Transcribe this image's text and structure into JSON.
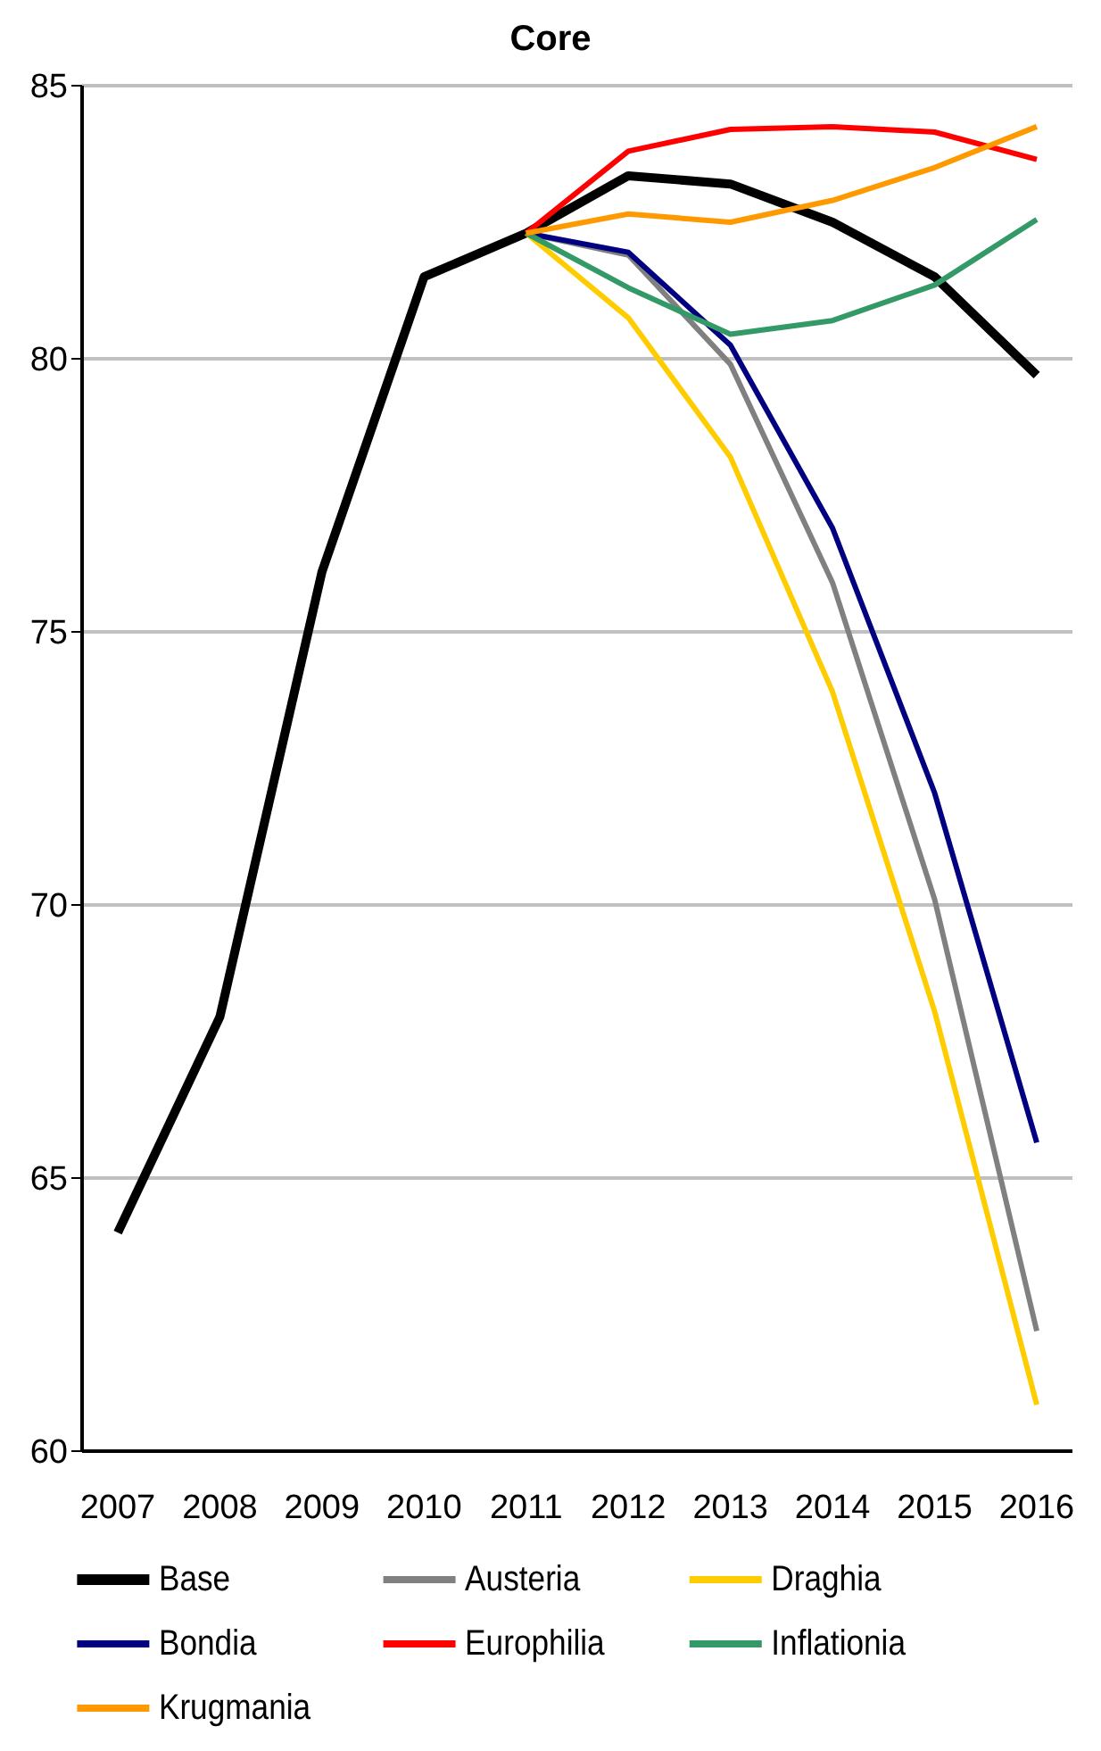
{
  "chart_data": {
    "type": "line",
    "title": "Core",
    "categories": [
      "2007",
      "2008",
      "2009",
      "2010",
      "2011",
      "2012",
      "2013",
      "2014",
      "2015",
      "2016"
    ],
    "series": [
      {
        "name": "Base",
        "color": "#000000",
        "values": [
          64.0,
          67.95,
          76.1,
          81.5,
          82.3,
          83.35,
          83.2,
          82.5,
          81.5,
          79.7
        ]
      },
      {
        "name": "Austeria",
        "color": "#808080",
        "values": [
          null,
          null,
          null,
          null,
          82.3,
          81.9,
          79.9,
          75.9,
          70.1,
          62.2
        ]
      },
      {
        "name": "Draghia",
        "color": "#ffcc00",
        "values": [
          null,
          null,
          null,
          null,
          82.3,
          80.75,
          78.2,
          73.9,
          68.05,
          60.85
        ]
      },
      {
        "name": "Bondia",
        "color": "#000080",
        "values": [
          null,
          null,
          null,
          null,
          82.3,
          81.95,
          80.25,
          76.9,
          72.05,
          65.65
        ]
      },
      {
        "name": "Europhilia",
        "color": "#ff0000",
        "values": [
          null,
          null,
          null,
          null,
          82.3,
          83.8,
          84.2,
          84.25,
          84.15,
          83.65
        ]
      },
      {
        "name": "Inflationia",
        "color": "#339966",
        "values": [
          null,
          null,
          null,
          null,
          82.3,
          81.3,
          80.45,
          80.7,
          81.35,
          82.55
        ]
      },
      {
        "name": "Krugmania",
        "color": "#ff9900",
        "values": [
          null,
          null,
          null,
          null,
          82.3,
          82.65,
          82.5,
          82.9,
          83.5,
          84.25
        ]
      }
    ],
    "ylim": [
      60,
      85
    ],
    "yticks": [
      60,
      65,
      70,
      75,
      80,
      85
    ],
    "grid": "y",
    "legend": "bottom",
    "marker": "none",
    "line_style": "solid"
  }
}
